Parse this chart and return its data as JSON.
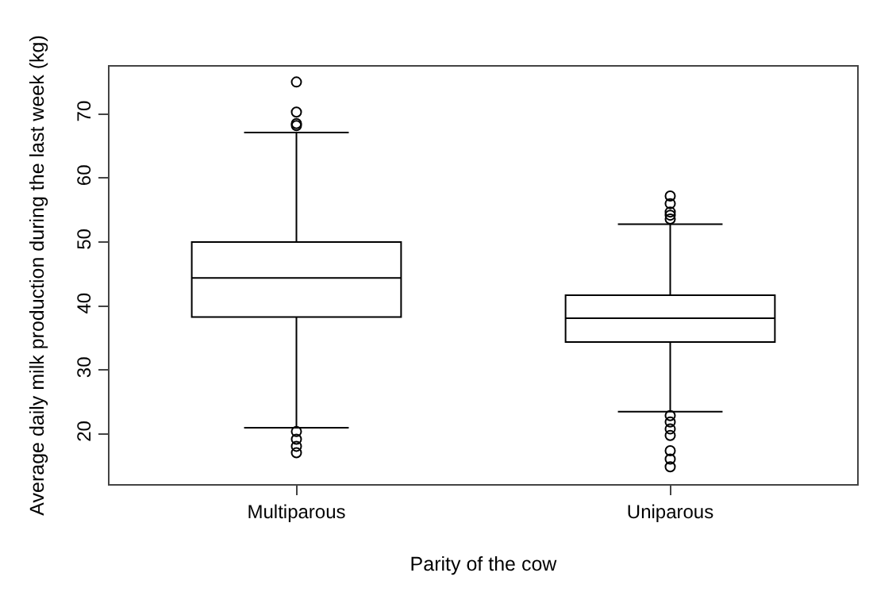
{
  "chart_data": {
    "type": "box",
    "xlabel": "Parity of the cow",
    "ylabel": "Average daily milk production during the last week (kg)",
    "categories": [
      "Multiparous",
      "Uniparous"
    ],
    "boxes": [
      {
        "low": 21.0,
        "q1": 38.3,
        "median": 44.4,
        "q3": 50.0,
        "high": 67.1,
        "outliers": [
          75.0,
          70.3,
          68.5,
          68.2,
          20.4,
          19.2,
          18.1,
          17.1
        ]
      },
      {
        "low": 23.5,
        "q1": 34.4,
        "median": 38.1,
        "q3": 41.7,
        "high": 52.8,
        "outliers": [
          57.2,
          56.0,
          54.7,
          54.2,
          53.6,
          22.9,
          21.9,
          20.8,
          19.8,
          17.4,
          16.1,
          14.9
        ]
      }
    ],
    "color": "#000000",
    "ylim": [
      12.2,
      77.4
    ],
    "yticks": [
      20,
      30,
      40,
      50,
      60,
      70
    ],
    "marker": "circle"
  }
}
